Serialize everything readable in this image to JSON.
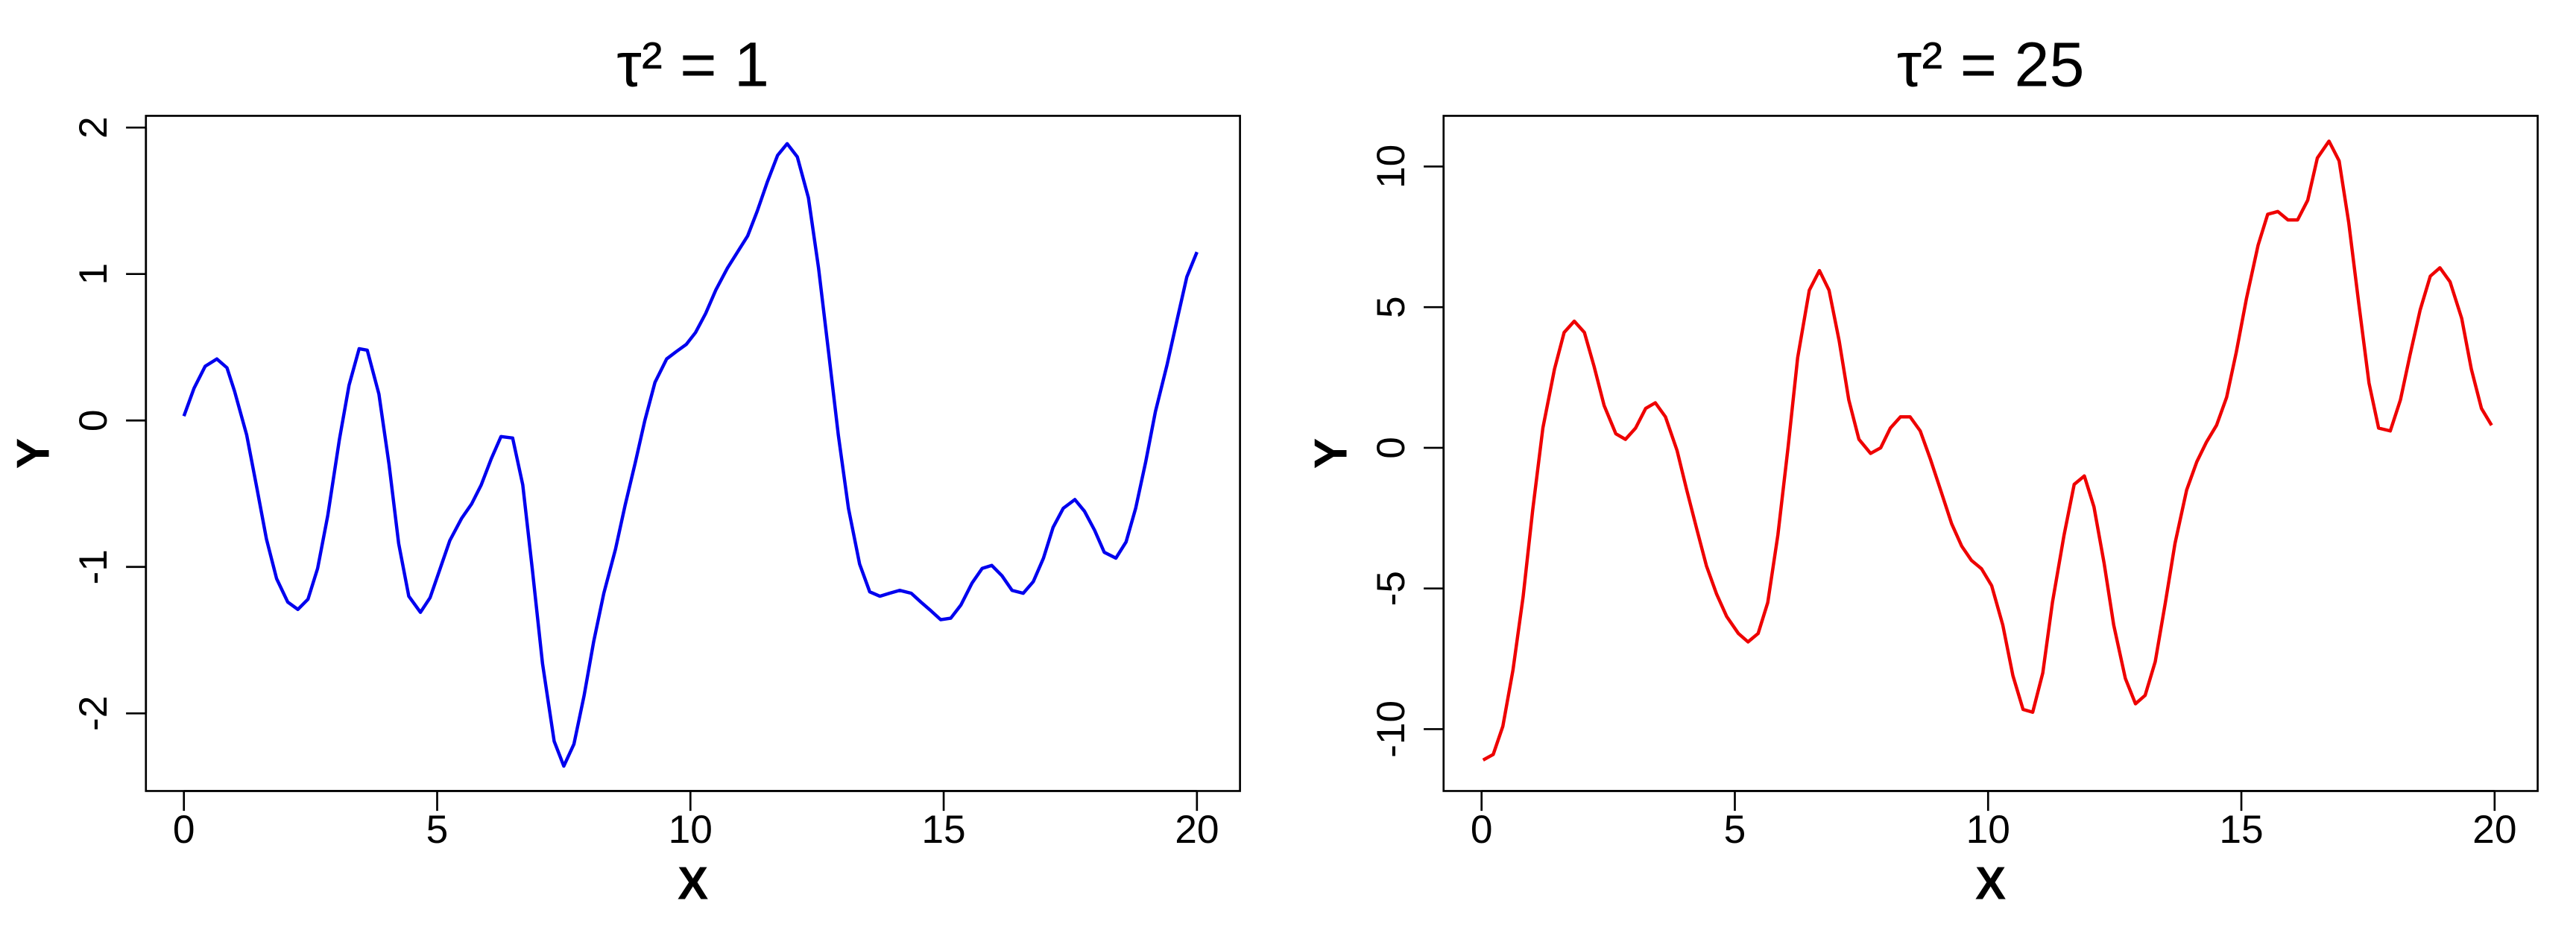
{
  "chart_data": [
    {
      "type": "line",
      "title": "τ² = 1",
      "xlabel": "X",
      "ylabel": "Y",
      "color": "#0000ee",
      "x": [
        0,
        0.2,
        0.42,
        0.65,
        0.85,
        1.0,
        1.24,
        1.44,
        1.63,
        1.83,
        2.05,
        2.25,
        2.45,
        2.64,
        2.84,
        3.07,
        3.26,
        3.46,
        3.62,
        3.85,
        4.05,
        4.24,
        4.44,
        4.67,
        4.86,
        5.06,
        5.25,
        5.48,
        5.68,
        5.87,
        6.07,
        6.26,
        6.49,
        6.69,
        6.88,
        7.08,
        7.31,
        7.5,
        7.7,
        7.9,
        8.09,
        8.29,
        8.52,
        8.71,
        8.91,
        9.1,
        9.3,
        9.53,
        9.72,
        9.92,
        10.1,
        10.3,
        10.5,
        10.73,
        10.93,
        11.13,
        11.32,
        11.52,
        11.72,
        11.91,
        12.11,
        12.33,
        12.53,
        12.73,
        12.92,
        13.12,
        13.34,
        13.54,
        13.74,
        13.93,
        14.13,
        14.36,
        14.55,
        14.75,
        14.94,
        15.14,
        15.34,
        15.56,
        15.76,
        15.95,
        16.15,
        16.35,
        16.57,
        16.77,
        16.97,
        17.16,
        17.36,
        17.59,
        17.78,
        17.98,
        18.17,
        18.4,
        18.6,
        18.79,
        18.99,
        19.18,
        19.41,
        19.61,
        19.8,
        20
      ],
      "values": [
        0.03,
        0.22,
        0.37,
        0.42,
        0.36,
        0.2,
        -0.1,
        -0.46,
        -0.81,
        -1.08,
        -1.24,
        -1.29,
        -1.22,
        -1.01,
        -0.65,
        -0.13,
        0.24,
        0.49,
        0.48,
        0.18,
        -0.3,
        -0.84,
        -1.2,
        -1.31,
        -1.21,
        -1.01,
        -0.82,
        -0.67,
        -0.57,
        -0.44,
        -0.26,
        -0.11,
        -0.12,
        -0.44,
        -1.02,
        -1.66,
        -2.19,
        -2.36,
        -2.21,
        -1.88,
        -1.51,
        -1.18,
        -0.88,
        -0.58,
        -0.29,
        0.0,
        0.26,
        0.42,
        0.47,
        0.52,
        0.6,
        0.73,
        0.89,
        1.04,
        1.15,
        1.26,
        1.43,
        1.63,
        1.81,
        1.89,
        1.8,
        1.52,
        1.04,
        0.46,
        -0.1,
        -0.6,
        -0.98,
        -1.17,
        -1.2,
        -1.18,
        -1.16,
        -1.18,
        -1.24,
        -1.3,
        -1.36,
        -1.35,
        -1.26,
        -1.11,
        -1.01,
        -0.99,
        -1.06,
        -1.16,
        -1.18,
        -1.1,
        -0.94,
        -0.73,
        -0.6,
        -0.54,
        -0.62,
        -0.75,
        -0.9,
        -0.94,
        -0.83,
        -0.6,
        -0.28,
        0.06,
        0.38,
        0.69,
        0.98,
        1.15
      ],
      "xlim": [
        -0.75,
        20.85
      ],
      "ylim": [
        -2.53,
        2.08
      ],
      "xticks": [
        0,
        5,
        10,
        15,
        20
      ],
      "yticks": [
        -2,
        -1,
        0,
        1,
        2
      ]
    },
    {
      "type": "line",
      "title": "τ² = 25",
      "xlabel": "X",
      "ylabel": "Y",
      "color": "#ee0000",
      "x": [
        0.03,
        0.23,
        0.42,
        0.62,
        0.82,
        1.01,
        1.21,
        1.44,
        1.63,
        1.83,
        2.03,
        2.22,
        2.42,
        2.65,
        2.84,
        3.04,
        3.24,
        3.43,
        3.63,
        3.86,
        4.05,
        4.25,
        4.44,
        4.64,
        4.84,
        5.07,
        5.26,
        5.46,
        5.65,
        5.85,
        6.05,
        6.24,
        6.47,
        6.67,
        6.86,
        7.06,
        7.25,
        7.45,
        7.68,
        7.88,
        8.07,
        8.27,
        8.46,
        8.66,
        8.86,
        9.08,
        9.28,
        9.48,
        9.67,
        9.87,
        10.07,
        10.29,
        10.49,
        10.69,
        10.88,
        11.08,
        11.27,
        11.5,
        11.7,
        11.9,
        12.09,
        12.29,
        12.48,
        12.71,
        12.91,
        13.1,
        13.3,
        13.5,
        13.69,
        13.92,
        14.12,
        14.31,
        14.51,
        14.71,
        14.9,
        15.1,
        15.33,
        15.52,
        15.72,
        15.92,
        16.11,
        16.31,
        16.5,
        16.73,
        16.93,
        17.12,
        17.32,
        17.52,
        17.71,
        17.94,
        18.14,
        18.33,
        18.53,
        18.73,
        18.92,
        19.12,
        19.35,
        19.54,
        19.74,
        19.94
      ],
      "values": [
        -11.1,
        -10.9,
        -9.9,
        -7.9,
        -5.3,
        -2.2,
        0.7,
        2.8,
        4.1,
        4.5,
        4.1,
        2.9,
        1.5,
        0.5,
        0.3,
        0.7,
        1.4,
        1.6,
        1.1,
        -0.1,
        -1.5,
        -2.9,
        -4.2,
        -5.2,
        -6.0,
        -6.6,
        -6.9,
        -6.6,
        -5.5,
        -3.1,
        0.0,
        3.2,
        5.6,
        6.3,
        5.6,
        3.8,
        1.7,
        0.3,
        -0.2,
        0.0,
        0.7,
        1.1,
        1.1,
        0.6,
        -0.4,
        -1.6,
        -2.7,
        -3.5,
        -4.0,
        -4.3,
        -4.9,
        -6.3,
        -8.1,
        -9.3,
        -9.4,
        -8.0,
        -5.5,
        -3.1,
        -1.3,
        -1.0,
        -2.1,
        -4.1,
        -6.3,
        -8.2,
        -9.1,
        -8.8,
        -7.6,
        -5.5,
        -3.4,
        -1.5,
        -0.5,
        0.2,
        0.8,
        1.8,
        3.4,
        5.3,
        7.2,
        8.3,
        8.4,
        8.1,
        8.1,
        8.8,
        10.3,
        10.9,
        10.2,
        8.0,
        5.1,
        2.3,
        0.7,
        0.6,
        1.7,
        3.3,
        4.9,
        6.1,
        6.4,
        5.9,
        4.6,
        2.8,
        1.4,
        0.8
      ],
      "xlim": [
        -0.75,
        20.85
      ],
      "ylim": [
        -12.2,
        11.8
      ],
      "xticks": [
        0,
        5,
        10,
        15,
        20
      ],
      "yticks": [
        -10,
        -5,
        0,
        5,
        10
      ]
    }
  ]
}
